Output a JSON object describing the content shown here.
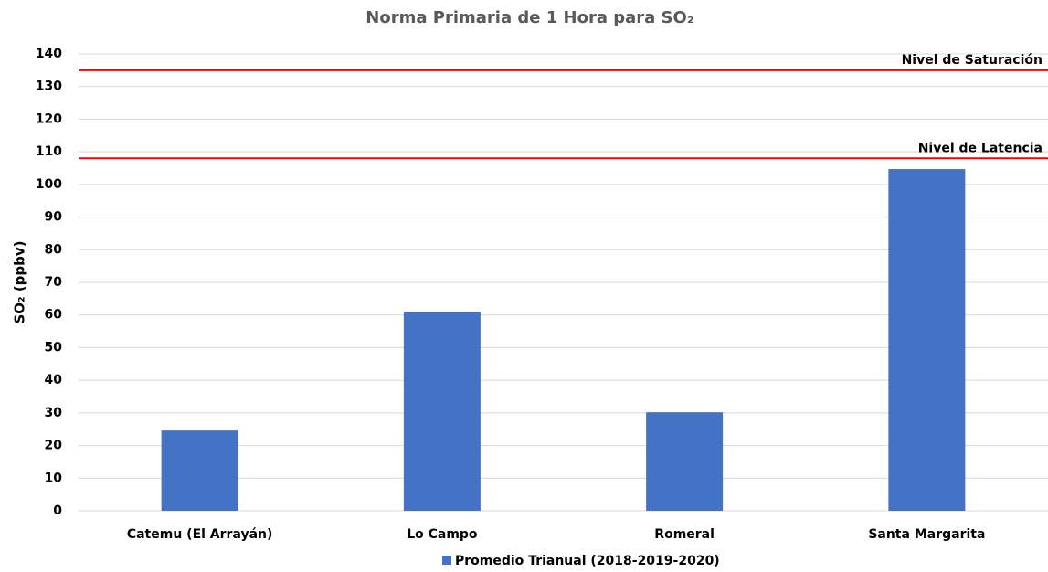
{
  "chart_data": {
    "type": "bar",
    "title": "Norma  Primaria de 1 Hora para SO₂",
    "y_label": "SO₂ (ppbv)",
    "categories": [
      "Catemu (El Arrayán)",
      "Lo Campo",
      "Romeral",
      "Santa Margarita"
    ],
    "series": [
      {
        "name": "Promedio Trianual (2018-2019-2020)",
        "color": "#4472c4",
        "values": [
          24.6,
          61,
          30.2,
          104.7
        ]
      }
    ],
    "ylim": [
      0,
      140
    ],
    "yticks": [
      0,
      10,
      20,
      30,
      40,
      50,
      60,
      70,
      80,
      90,
      100,
      110,
      120,
      130,
      140
    ],
    "grid": true,
    "reference_lines": [
      {
        "label": "Nivel de Saturación",
        "value": 135,
        "color": "#ff0000"
      },
      {
        "label": "Nivel de Latencia",
        "value": 108,
        "color": "#ff0000"
      }
    ],
    "legend": "bottom"
  }
}
